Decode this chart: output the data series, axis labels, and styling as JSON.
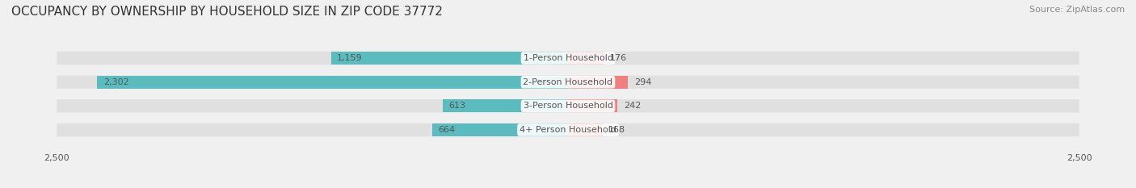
{
  "title": "OCCUPANCY BY OWNERSHIP BY HOUSEHOLD SIZE IN ZIP CODE 37772",
  "source": "Source: ZipAtlas.com",
  "categories": [
    "1-Person Household",
    "2-Person Household",
    "3-Person Household",
    "4+ Person Household"
  ],
  "owner_values": [
    1159,
    2302,
    613,
    664
  ],
  "renter_values": [
    176,
    294,
    242,
    168
  ],
  "owner_color": "#5bbcbf",
  "renter_color": "#f08080",
  "axis_max": 2500,
  "background_color": "#f0f0f0",
  "bar_background": "#e0e0e0",
  "title_fontsize": 11,
  "source_fontsize": 8,
  "label_fontsize": 8,
  "tick_fontsize": 8,
  "bar_height": 0.55,
  "figsize": [
    14.06,
    2.33
  ],
  "dpi": 100
}
